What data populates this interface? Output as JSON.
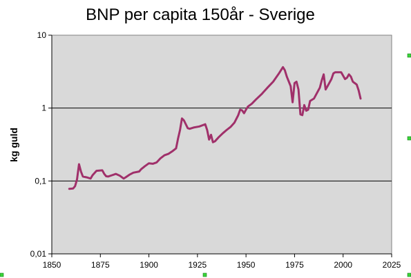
{
  "chart_data": {
    "type": "line",
    "title": "BNP per capita 150år - Sverige",
    "xlabel": "",
    "ylabel": "kg guld",
    "yscale": "log",
    "xlim": [
      1850,
      2025
    ],
    "ylim": [
      0.01,
      10
    ],
    "x_ticks": [
      "1850",
      "1875",
      "1900",
      "1925",
      "1950",
      "1975",
      "2000",
      "2025"
    ],
    "y_ticks": [
      "0,01",
      "0,1",
      "1",
      "10"
    ],
    "grid": "horizontal major gridlines",
    "legend": "none",
    "plot_background": "#d9d9d9",
    "series": [
      {
        "color": "#a0306a",
        "x": [
          1859,
          1861,
          1862,
          1863,
          1864,
          1865,
          1866,
          1868,
          1870,
          1871,
          1873,
          1876,
          1877,
          1878,
          1879,
          1881,
          1883,
          1885,
          1887,
          1888,
          1890,
          1892,
          1895,
          1896,
          1898,
          1900,
          1902,
          1904,
          1906,
          1908,
          1910,
          1912,
          1914,
          1915,
          1916,
          1917,
          1918,
          1919,
          1920,
          1921,
          1923,
          1926,
          1929,
          1930,
          1931,
          1932,
          1933,
          1934,
          1936,
          1938,
          1940,
          1942,
          1944,
          1946,
          1947,
          1948,
          1949,
          1950,
          1951,
          1953,
          1955,
          1958,
          1961,
          1964,
          1967,
          1969,
          1970,
          1971,
          1973,
          1974,
          1975,
          1976,
          1977,
          1978,
          1979,
          1980,
          1981,
          1982,
          1983,
          1984,
          1985,
          1987,
          1988,
          1989,
          1990,
          1991,
          1992,
          1994,
          1995,
          1996,
          1997,
          1999,
          2001,
          2002,
          2003,
          2004,
          2005,
          2006,
          2007,
          2008,
          2009
        ],
        "y": [
          0.078,
          0.079,
          0.085,
          0.105,
          0.17,
          0.135,
          0.115,
          0.112,
          0.108,
          0.12,
          0.138,
          0.14,
          0.125,
          0.116,
          0.115,
          0.12,
          0.125,
          0.118,
          0.108,
          0.112,
          0.122,
          0.13,
          0.135,
          0.145,
          0.16,
          0.175,
          0.172,
          0.18,
          0.205,
          0.225,
          0.235,
          0.255,
          0.28,
          0.38,
          0.5,
          0.72,
          0.68,
          0.6,
          0.53,
          0.52,
          0.54,
          0.56,
          0.6,
          0.5,
          0.37,
          0.43,
          0.34,
          0.35,
          0.4,
          0.45,
          0.5,
          0.55,
          0.63,
          0.8,
          0.95,
          0.93,
          0.85,
          0.95,
          1.05,
          1.15,
          1.3,
          1.55,
          1.9,
          2.3,
          3.0,
          3.65,
          3.3,
          2.7,
          2.0,
          1.2,
          2.2,
          2.3,
          1.8,
          0.82,
          0.8,
          1.1,
          0.92,
          0.95,
          1.25,
          1.3,
          1.35,
          1.7,
          1.9,
          2.4,
          2.9,
          1.8,
          2.0,
          2.5,
          3.0,
          3.1,
          3.1,
          3.1,
          2.5,
          2.6,
          2.9,
          2.7,
          2.3,
          2.2,
          2.1,
          1.75,
          1.35
        ]
      }
    ]
  },
  "colors": {
    "plot_background": "#d9d9d9",
    "line": "#a0306a",
    "gridline": "#000000",
    "selection_handle": "#39d639"
  }
}
